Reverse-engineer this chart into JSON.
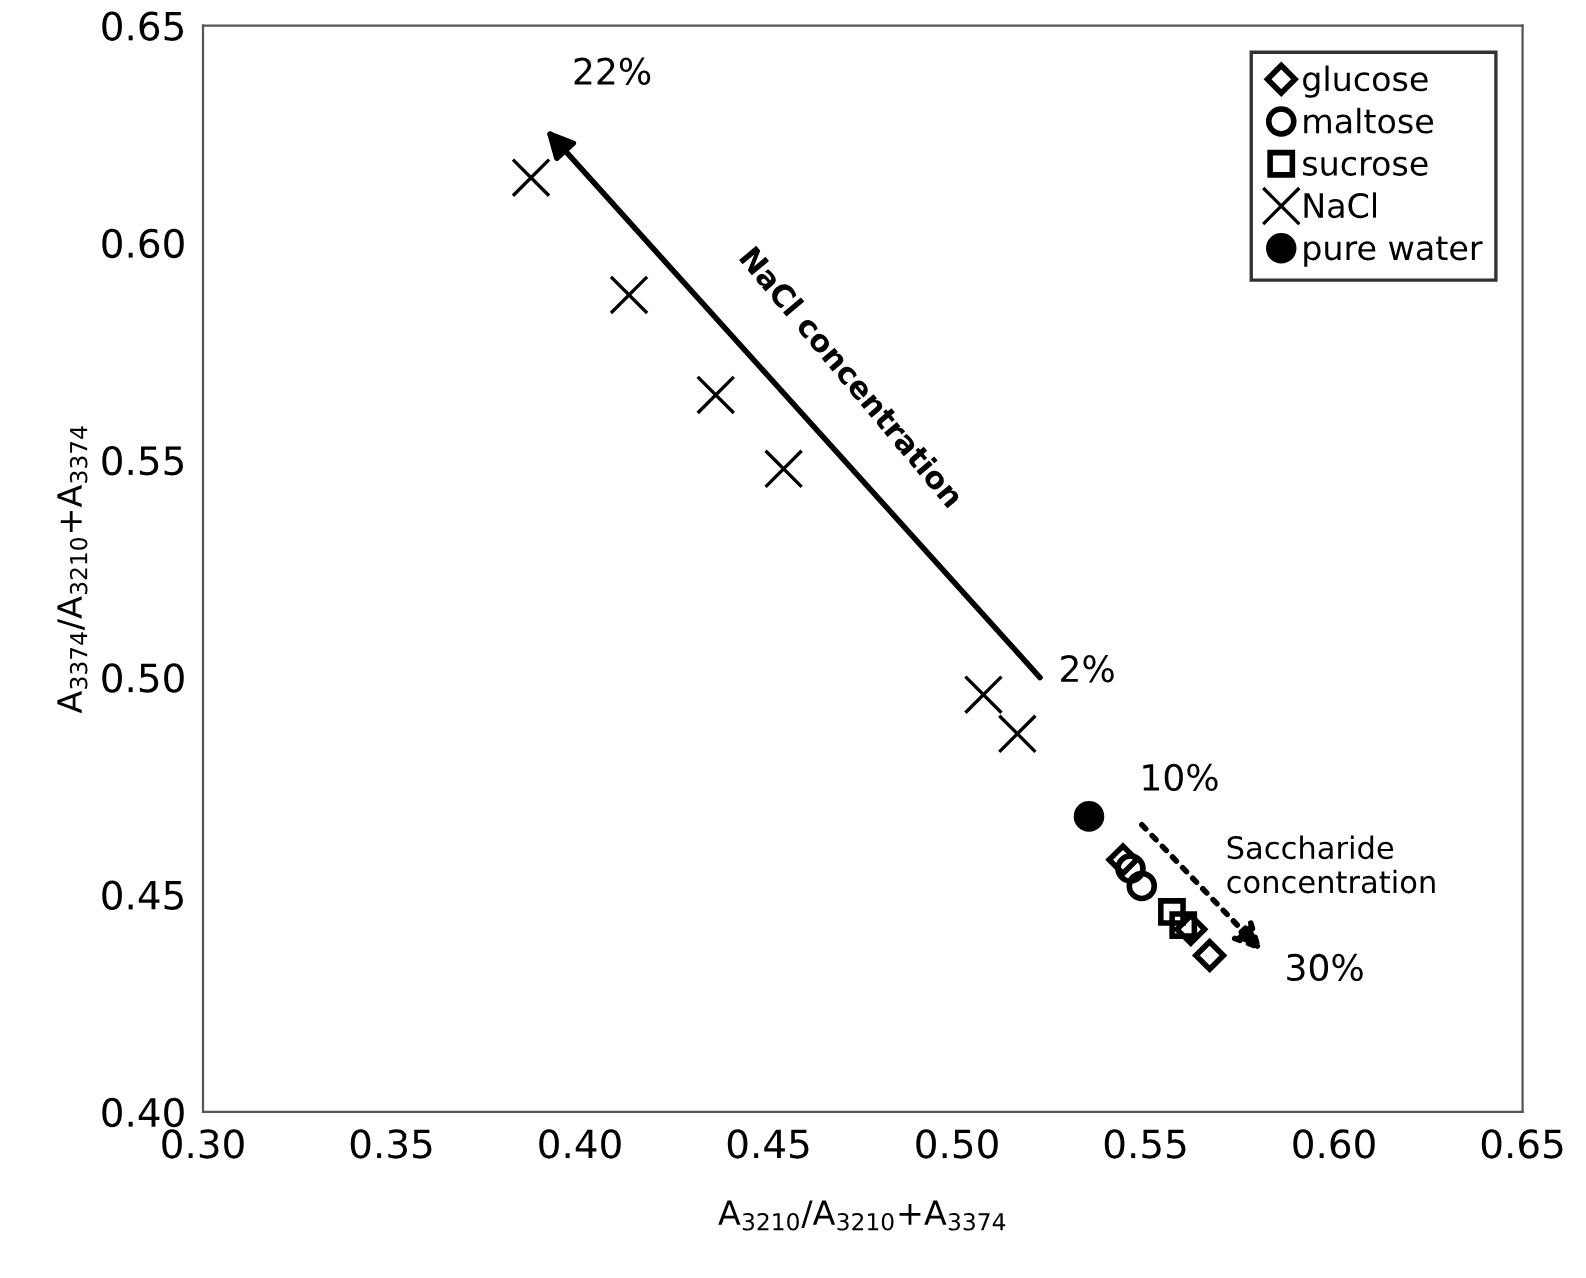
{
  "chart_data": {
    "type": "scatter",
    "xlabel": "A$_{3210}$/A$_{3210}$+A$_{3374}$",
    "ylabel": "A$_{3374}$/A$_{3210}$+A$_{3374}$",
    "series": [
      {
        "name": "glucose",
        "color": "#000000",
        "marker": "diamond",
        "x": [
          0.544,
          0.562,
          0.567
        ],
        "values": [
          0.458,
          0.442,
          0.436
        ]
      },
      {
        "name": "maltose",
        "color": "#000000",
        "marker": "circle",
        "x": [
          0.546,
          0.549
        ],
        "values": [
          0.456,
          0.452
        ]
      },
      {
        "name": "sucrose",
        "color": "#000000",
        "marker": "square",
        "x": [
          0.557,
          0.56
        ],
        "values": [
          0.446,
          0.443
        ]
      },
      {
        "name": "NaCl",
        "color": "#000000",
        "marker": "cross",
        "x": [
          0.387,
          0.413,
          0.436,
          0.454,
          0.507,
          0.516
        ],
        "values": [
          0.615,
          0.588,
          0.565,
          0.548,
          0.496,
          0.487
        ]
      },
      {
        "name": "pure water",
        "color": "#000000",
        "colors": [
          "#000000"
        ],
        "marker": "circle",
        "x": [
          0.535
        ],
        "values": [
          0.468
        ]
      }
    ],
    "annotations": [
      "22%",
      "2%",
      "NaCl concentration",
      "10%",
      "Saccharide\nconcentration",
      "30%"
    ],
    "xlim": [
      0.3,
      0.65
    ],
    "xticks": [
      {
        "value": 0.3,
        "label": "0.30"
      },
      {
        "value": 0.35,
        "label": "0.35"
      },
      {
        "value": 0.4,
        "label": "0.40"
      },
      {
        "value": 0.45,
        "label": "0.45"
      },
      {
        "value": 0.5,
        "label": "0.50"
      },
      {
        "value": 0.55,
        "label": "0.55"
      },
      {
        "value": 0.6,
        "label": "0.60"
      },
      {
        "value": 0.65,
        "label": "0.65"
      }
    ],
    "ylim": [
      0.4,
      0.65
    ],
    "yticks": [
      {
        "value": 0.4,
        "label": "0.40"
      },
      {
        "value": 0.45,
        "label": "0.45"
      },
      {
        "value": 0.5,
        "label": "0.50"
      },
      {
        "value": 0.55,
        "label": "0.55"
      },
      {
        "value": 0.6,
        "label": "0.60"
      },
      {
        "value": 0.65,
        "label": "0.65"
      }
    ],
    "grid": false,
    "legend": "top right"
  }
}
